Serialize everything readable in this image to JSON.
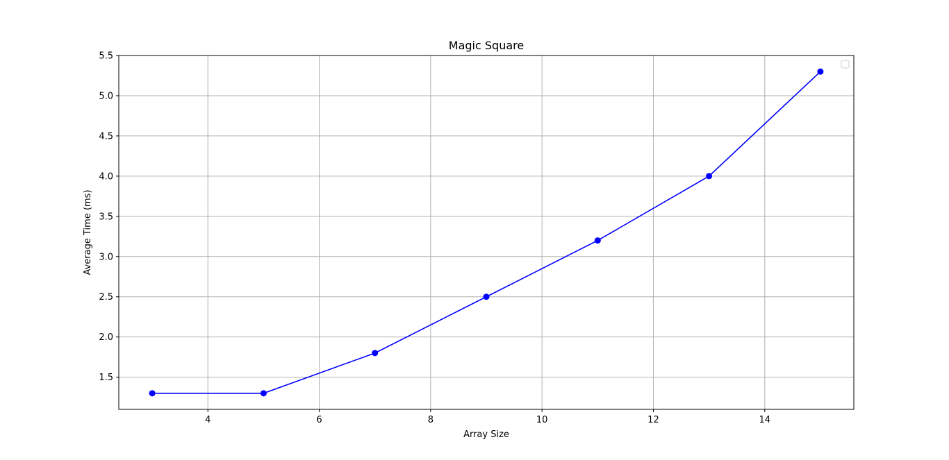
{
  "chart_data": {
    "type": "line",
    "title": "Magic Square",
    "xlabel": "Array Size",
    "ylabel": "Average Time (ms)",
    "x": [
      3,
      5,
      7,
      9,
      11,
      13,
      15
    ],
    "series": [
      {
        "values": [
          1.3,
          1.3,
          1.8,
          2.5,
          3.2,
          4.0,
          5.3
        ],
        "color": "#0000ff",
        "marker": "circle"
      }
    ],
    "xlim": [
      2.4,
      15.6
    ],
    "ylim": [
      1.1,
      5.5
    ],
    "xticks": [
      4,
      6,
      8,
      10,
      12,
      14
    ],
    "xtick_labels": [
      "4",
      "6",
      "8",
      "10",
      "12",
      "14"
    ],
    "yticks": [
      1.5,
      2.0,
      2.5,
      3.0,
      3.5,
      4.0,
      4.5,
      5.0,
      5.5
    ],
    "ytick_labels": [
      "1.5",
      "2.0",
      "2.5",
      "3.0",
      "3.5",
      "4.0",
      "4.5",
      "5.0",
      "5.5"
    ],
    "grid": true,
    "legend": "top-right, empty"
  }
}
